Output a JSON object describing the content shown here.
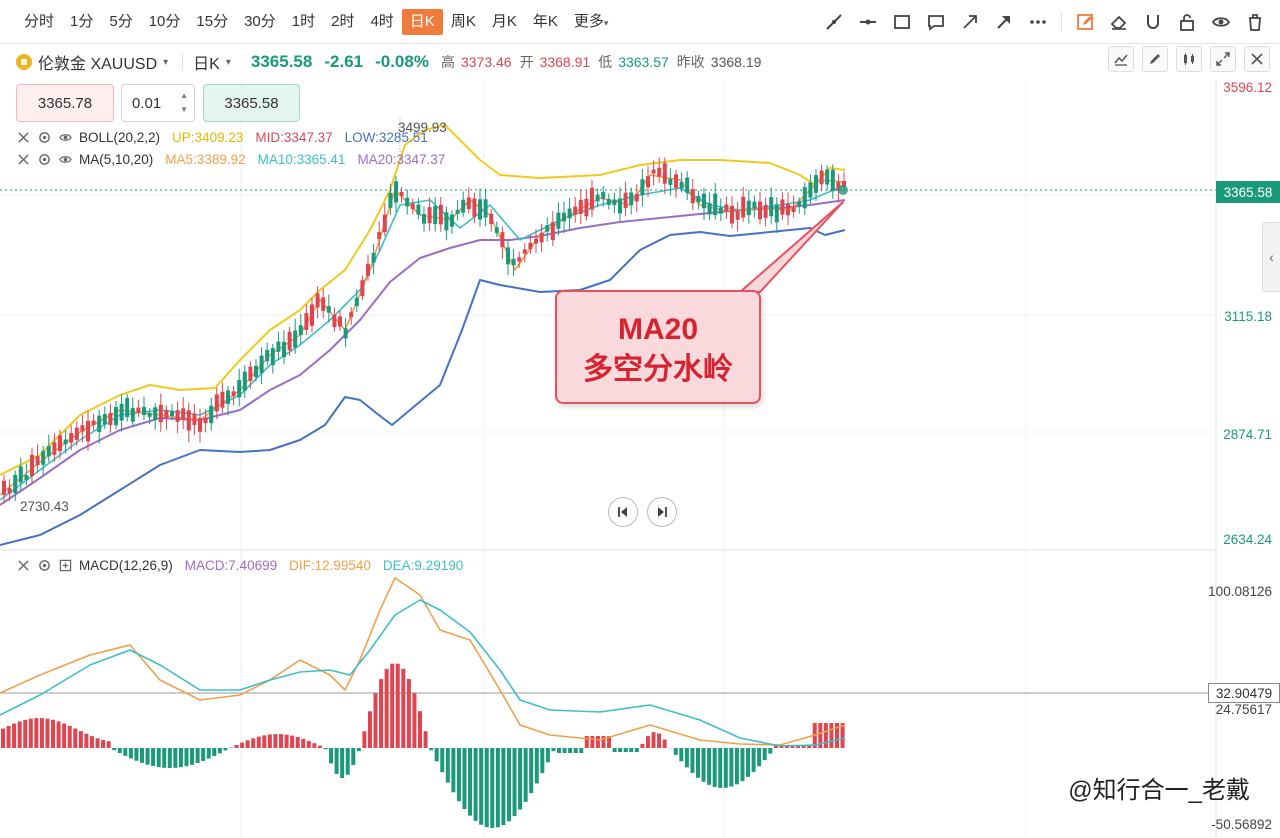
{
  "toolbar": {
    "periods": [
      "分时",
      "1分",
      "5分",
      "10分",
      "15分",
      "30分",
      "1时",
      "2时",
      "4时",
      "日K",
      "周K",
      "月K",
      "年K",
      "更多"
    ],
    "active_period": "日K",
    "tool_icons": [
      "line-tool-icon",
      "horizontal-line-icon",
      "rectangle-icon",
      "comment-icon",
      "arrow-icon",
      "arrow-fill-icon",
      "more-dots-icon",
      "edit-icon",
      "eraser-icon",
      "magnet-icon",
      "lock-icon",
      "eye-icon",
      "trash-icon"
    ]
  },
  "info": {
    "symbol": "伦敦金 XAUUSD",
    "period": "日K",
    "price": "3365.58",
    "change": "-2.61",
    "change_pct": "-0.08%",
    "high_label": "高",
    "high": "3373.46",
    "open_label": "开",
    "open": "3368.91",
    "low_label": "低",
    "low": "3363.57",
    "prev_label": "昨收",
    "prev": "3368.19"
  },
  "order": {
    "sell": "3365.78",
    "qty": "0.01",
    "buy": "3365.58"
  },
  "legend_boll": {
    "name": "BOLL(20,2,2)",
    "up": "UP:3409.23",
    "mid": "MID:3347.37",
    "low": "LOW:3285.51"
  },
  "legend_ma": {
    "name": "MA(5,10,20)",
    "ma5": "MA5:3389.92",
    "ma10": "MA10:3365.41",
    "ma20": "MA20:3347.37"
  },
  "legend_macd": {
    "name": "MACD(12,26,9)",
    "macd": "MACD:7.40699",
    "dif": "DIF:12.99540",
    "dea": "DEA:9.29190"
  },
  "price_axis": [
    "3596.12",
    "3115.18",
    "2874.71",
    "2634.24"
  ],
  "current_price_tag": "3365.58",
  "chart_labels": {
    "high": "3499.93",
    "low": "2730.43"
  },
  "macd_axis": [
    "100.08126",
    "24.75617",
    "-50.56892"
  ],
  "macd_tag": "32.90479",
  "annotation": {
    "line1": "MA20",
    "line2": "多空分水岭"
  },
  "watermark": "@知行合一_老戴",
  "colors": {
    "up": "#e0454f",
    "down": "#1a9a7a",
    "boll_up": "#f2c81c",
    "boll_low": "#4472c4",
    "ma5": "#f0a04b",
    "ma10": "#3cbfc9",
    "ma20": "#9b6cc9",
    "dif": "#f0a04b",
    "dea": "#3cbfc9"
  }
}
